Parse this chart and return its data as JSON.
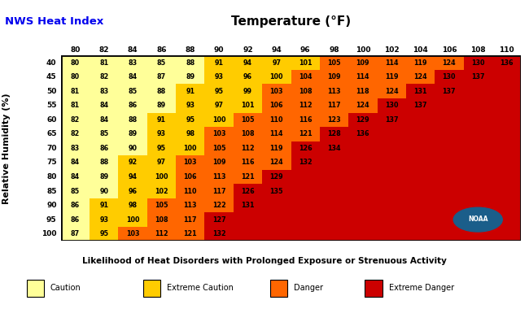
{
  "title_left": "NWS Heat Index",
  "title_center": "Temperature (°F)",
  "xlabel": "Likelihood of Heat Disorders with Prolonged Exposure or Strenuous Activity",
  "ylabel": "Relative Humidity (%)",
  "temp_cols": [
    80,
    82,
    84,
    86,
    88,
    90,
    92,
    94,
    96,
    98,
    100,
    102,
    104,
    106,
    108,
    110
  ],
  "humidity_rows": [
    40,
    45,
    50,
    55,
    60,
    65,
    70,
    75,
    80,
    85,
    90,
    95,
    100
  ],
  "heat_index": [
    [
      80,
      81,
      83,
      85,
      88,
      91,
      94,
      97,
      101,
      105,
      109,
      114,
      119,
      124,
      130,
      136
    ],
    [
      80,
      82,
      84,
      87,
      89,
      93,
      96,
      100,
      104,
      109,
      114,
      119,
      124,
      130,
      137,
      null
    ],
    [
      81,
      83,
      85,
      88,
      91,
      95,
      99,
      103,
      108,
      113,
      118,
      124,
      131,
      137,
      null,
      null
    ],
    [
      81,
      84,
      86,
      89,
      93,
      97,
      101,
      106,
      112,
      117,
      124,
      130,
      137,
      null,
      null,
      null
    ],
    [
      82,
      84,
      88,
      91,
      95,
      100,
      105,
      110,
      116,
      123,
      129,
      137,
      null,
      null,
      null,
      null
    ],
    [
      82,
      85,
      89,
      93,
      98,
      103,
      108,
      114,
      121,
      128,
      136,
      null,
      null,
      null,
      null,
      null
    ],
    [
      83,
      86,
      90,
      95,
      100,
      105,
      112,
      119,
      126,
      134,
      null,
      null,
      null,
      null,
      null,
      null
    ],
    [
      84,
      88,
      92,
      97,
      103,
      109,
      116,
      124,
      132,
      null,
      null,
      null,
      null,
      null,
      null,
      null
    ],
    [
      84,
      89,
      94,
      100,
      106,
      113,
      121,
      129,
      null,
      null,
      null,
      null,
      null,
      null,
      null,
      null
    ],
    [
      85,
      90,
      96,
      102,
      110,
      117,
      126,
      135,
      null,
      null,
      null,
      null,
      null,
      null,
      null,
      null
    ],
    [
      86,
      91,
      98,
      105,
      113,
      122,
      131,
      null,
      null,
      null,
      null,
      null,
      null,
      null,
      null,
      null
    ],
    [
      86,
      93,
      100,
      108,
      117,
      127,
      null,
      null,
      null,
      null,
      null,
      null,
      null,
      null,
      null,
      null
    ],
    [
      87,
      95,
      103,
      112,
      121,
      132,
      null,
      null,
      null,
      null,
      null,
      null,
      null,
      null,
      null,
      null
    ]
  ],
  "color_caution": "#FFFF99",
  "color_extreme_caution": "#FFCC00",
  "color_danger": "#FF6600",
  "color_extreme_danger": "#CC0000",
  "title_left_color": "#0000EE",
  "legend_labels": [
    "Caution",
    "Extreme Caution",
    "Danger",
    "Extreme Danger"
  ],
  "legend_colors": [
    "#FFFF99",
    "#FFCC00",
    "#FF6600",
    "#CC0000"
  ],
  "fig_width": 6.5,
  "fig_height": 3.8,
  "dpi": 100
}
